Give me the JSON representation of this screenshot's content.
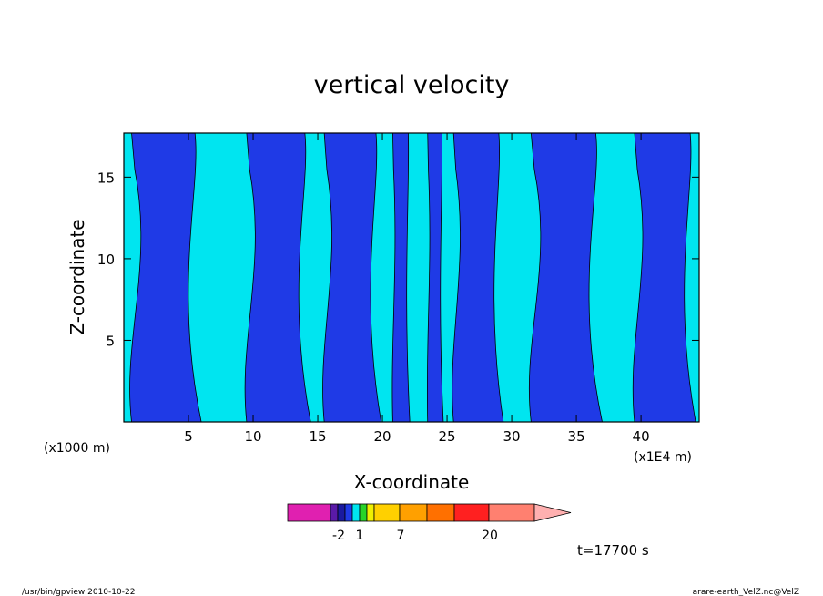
{
  "chart_data": {
    "type": "heatmap",
    "title": "vertical velocity",
    "xlabel": "X-coordinate",
    "ylabel": "Z-coordinate",
    "x_unit_left": "(x1000 m)",
    "x_unit_right": "(x1E4 m)",
    "xlim": [
      0,
      44.5
    ],
    "ylim": [
      0,
      17.7
    ],
    "x_ticks": [
      "5",
      "10",
      "15",
      "20",
      "25",
      "30",
      "35",
      "40"
    ],
    "x_tick_values": [
      5,
      10,
      15,
      20,
      25,
      30,
      35,
      40
    ],
    "y_ticks": [
      "5",
      "10",
      "15"
    ],
    "y_tick_values": [
      5,
      10,
      15
    ],
    "field_colors": {
      "positive": "#00e5f0",
      "negative": "#1f3ae6"
    },
    "updraft_regions": [
      {
        "x_from": 0.6,
        "x_to": 5.5,
        "z_top": 17.7
      },
      {
        "x_from": 9.5,
        "x_to": 14.0,
        "z_top": 17.7
      },
      {
        "x_from": 15.5,
        "x_to": 19.5,
        "z_top": 17.7
      },
      {
        "x_from": 20.8,
        "x_to": 22.0,
        "z_top": 17.7
      },
      {
        "x_from": 23.5,
        "x_to": 24.6,
        "z_top": 17.7
      },
      {
        "x_from": 25.5,
        "x_to": 29.0,
        "z_top": 17.7
      },
      {
        "x_from": 31.5,
        "x_to": 36.5,
        "z_top": 17.7
      },
      {
        "x_from": 39.5,
        "x_to": 43.8,
        "z_top": 17.7
      }
    ],
    "colorbar": {
      "colors": [
        "#e020b0",
        "#5a1aa8",
        "#1a1aa0",
        "#1f3ae6",
        "#00e5f0",
        "#28d428",
        "#f0f000",
        "#ffd000",
        "#ffa000",
        "#ff7000",
        "#ff2020",
        "#ff8070",
        "#ffb0b0"
      ],
      "tick_labels": [
        "-2",
        "1",
        "7",
        "20"
      ]
    },
    "time_label": "t=17700 s"
  },
  "footer": {
    "left": "/usr/bin/gpview  2010-10-22",
    "right": "arare-earth_VelZ.nc@VelZ"
  }
}
